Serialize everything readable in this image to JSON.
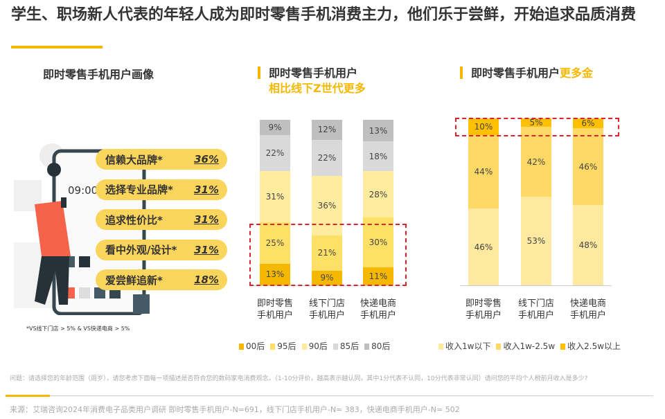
{
  "title": "学生、职场新人代表的年轻人成为即时零售手机消费主力，他们乐于尝鲜，开始追求品质消费",
  "left": {
    "title": "即时零售手机用户画像",
    "clock": "09:00",
    "items": [
      {
        "label": "信赖大品牌*",
        "value": "36%"
      },
      {
        "label": "选择专业品牌*",
        "value": "31%"
      },
      {
        "label": "追求性价比*",
        "value": "31%"
      },
      {
        "label": "看中外观/设计*",
        "value": "31%"
      },
      {
        "label": "爱尝鲜追新*",
        "value": "18%"
      }
    ],
    "note": "*VS线下门店 > 5% & VS快递电商 > 5%"
  },
  "chart_data": [
    {
      "type": "bar",
      "stacked": true,
      "title": "即时零售手机用户",
      "subtitle": "相比线下Z世代更多",
      "categories": [
        "即时零售\n手机用户",
        "线下门店\n手机用户",
        "快递电商\n手机用户"
      ],
      "series": [
        {
          "name": "00后",
          "values": [
            13,
            9,
            11
          ],
          "color": "#F5B800"
        },
        {
          "name": "95后",
          "values": [
            25,
            21,
            30
          ],
          "color": "#FFE066"
        },
        {
          "name": "90后",
          "values": [
            31,
            36,
            28
          ],
          "color": "#FFEC9E"
        },
        {
          "name": "85后",
          "values": [
            22,
            22,
            18
          ],
          "color": "#D9D9D9"
        },
        {
          "name": "80后",
          "values": [
            9,
            12,
            13
          ],
          "color": "#BFBFBF"
        }
      ],
      "highlight": "00后+95后"
    },
    {
      "type": "bar",
      "stacked": true,
      "title": "即时零售手机用户",
      "title_accent": "更多金",
      "categories": [
        "即时零售\n手机用户",
        "线下门店\n手机用户",
        "快递电商\n手机用户"
      ],
      "series": [
        {
          "name": "收入1w以下",
          "values": [
            46,
            53,
            48
          ],
          "color": "#FFE9A0"
        },
        {
          "name": "收入1w-2.5w",
          "values": [
            44,
            42,
            46
          ],
          "color": "#FFD966"
        },
        {
          "name": "收入2.5w以上",
          "values": [
            10,
            5,
            6
          ],
          "color": "#FFC000"
        }
      ],
      "highlight": "收入2.5w以上"
    }
  ],
  "footer": {
    "question": "问题：请选择您的年龄范围（周岁），请您考虑下面每一项描述是否符合您的数码家电消费观念。（1-10分评价，越高表示越认同，其中1分代表不认同，10分代表非常认同）请问您的平均个人税前月收入是多少?",
    "source": "来源：艾瑞咨询2024年消费电子品类用户调研  即时零售手机用户-N=691，线下门店手机用户-N= 383，快递电商手机用户-N= 502"
  }
}
